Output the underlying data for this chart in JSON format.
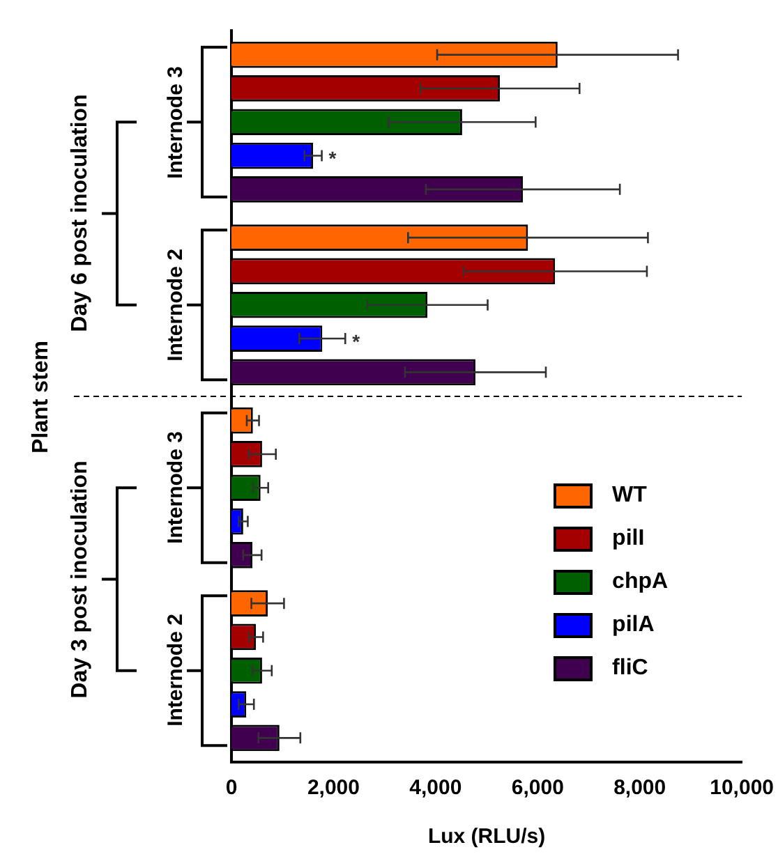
{
  "chart_data": {
    "type": "bar",
    "orientation": "horizontal",
    "ylabel": "Plant stem",
    "xlabel": "Lux (RLU/s)",
    "categories": [
      "Internode 3",
      "Internode 2",
      "Internode 3",
      "Internode 2"
    ],
    "annotations": [
      "Day 6 post inoculation",
      "Day 3 post inoculation"
    ],
    "series": [
      {
        "name": "WT",
        "color": "#ff6600",
        "values": [
          6390,
          5810,
          420,
          710
        ],
        "errors": [
          2360,
          2350,
          120,
          320
        ]
      },
      {
        "name": "pilI",
        "color": "#a50000",
        "values": [
          5260,
          6340,
          600,
          480
        ],
        "errors": [
          1560,
          1800,
          270,
          140
        ]
      },
      {
        "name": "chpA",
        "color": "#006000",
        "values": [
          4520,
          3840,
          570,
          600
        ],
        "errors": [
          1440,
          1180,
          150,
          190
        ]
      },
      {
        "name": "pilA",
        "color": "#0000ff",
        "values": [
          1600,
          1780,
          230,
          290
        ],
        "errors": [
          170,
          450,
          90,
          150
        ],
        "value_labels": [
          "*",
          "*",
          null,
          null
        ]
      },
      {
        "name": "fliC",
        "color": "#40004f",
        "values": [
          5710,
          4780,
          410,
          940
        ],
        "errors": [
          1900,
          1380,
          180,
          410
        ]
      }
    ],
    "xlim": [
      0,
      10000
    ],
    "xticks": [
      0,
      {
        "value": 2000,
        "label": "2,000"
      },
      {
        "value": 4000,
        "label": "4,000"
      },
      {
        "value": 6000,
        "label": "6,000"
      },
      {
        "value": 8000,
        "label": "8,000"
      },
      {
        "value": 10000,
        "label": "10,000"
      }
    ],
    "grid": false,
    "legend": "bottom right"
  }
}
